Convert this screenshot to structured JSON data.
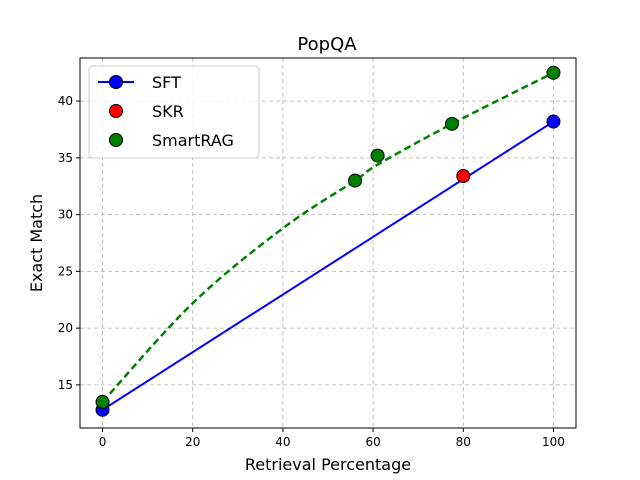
{
  "chart_data": {
    "type": "line",
    "title": "PopQA",
    "xlabel": "Retrieval Percentage",
    "ylabel": "Exact Match",
    "xlim": [
      -5,
      105
    ],
    "ylim": [
      11.2,
      43.8
    ],
    "xticks": [
      0,
      20,
      40,
      60,
      80,
      100
    ],
    "yticks": [
      15,
      20,
      25,
      30,
      35,
      40
    ],
    "grid": true,
    "legend_position": "top-left",
    "series": [
      {
        "name": "SFT",
        "style": "line",
        "line_color": "#0000ff",
        "marker_color": "#0000ff",
        "x": [
          0,
          100
        ],
        "y": [
          12.8,
          38.2
        ]
      },
      {
        "name": "SKR",
        "style": "scatter",
        "marker_color": "#ff0000",
        "x": [
          80
        ],
        "y": [
          33.4
        ]
      },
      {
        "name": "SmartRAG",
        "style": "scatter",
        "marker_color": "#008000",
        "x": [
          0,
          56,
          61,
          77.5,
          100
        ],
        "y": [
          13.5,
          33.0,
          35.2,
          38.0,
          42.5
        ]
      }
    ],
    "trend_curve": {
      "line_color": "#008000",
      "dashed": true,
      "x": [
        0,
        20,
        40,
        56,
        61,
        77.5,
        100
      ],
      "y": [
        13.5,
        22.2,
        28.8,
        33.0,
        34.4,
        38.0,
        42.5
      ]
    }
  }
}
